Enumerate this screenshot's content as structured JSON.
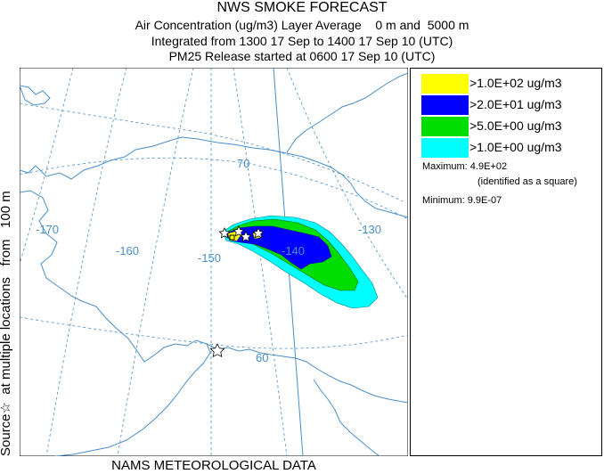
{
  "header": {
    "title": "NWS SMOKE FORECAST",
    "line1": "Air Concentration (ug/m3) Layer Average    0 m and  5000 m",
    "line2": "Integrated from 1300 17 Sep to 1400 17 Sep 10 (UTC)",
    "line3": "PM25 Release started at 0600 17 Sep 10 (UTC)"
  },
  "side_label": "Source☆  at multiple locations   from   100 m",
  "bottom_label": "NAMS METEOROLOGICAL DATA",
  "map": {
    "lat_labels": [
      "70",
      "60"
    ],
    "lon_labels": [
      "-170",
      "-160",
      "-150",
      "-140",
      "-130"
    ],
    "line_color": "#4a8fc8"
  },
  "legend": {
    "items": [
      {
        "label": ">1.0E+02 ug/m3",
        "color": "#ffff00"
      },
      {
        "label": ">2.0E+01 ug/m3",
        "color": "#0000ff"
      },
      {
        "label": ">5.0E+00 ug/m3",
        "color": "#00dd00"
      },
      {
        "label": ">1.0E+00 ug/m3",
        "color": "#00ffff"
      }
    ],
    "maximum": "Maximum: 4.9E+02",
    "max_note": "(identified as a square)",
    "minimum": "Minimum: 9.9E-07"
  }
}
